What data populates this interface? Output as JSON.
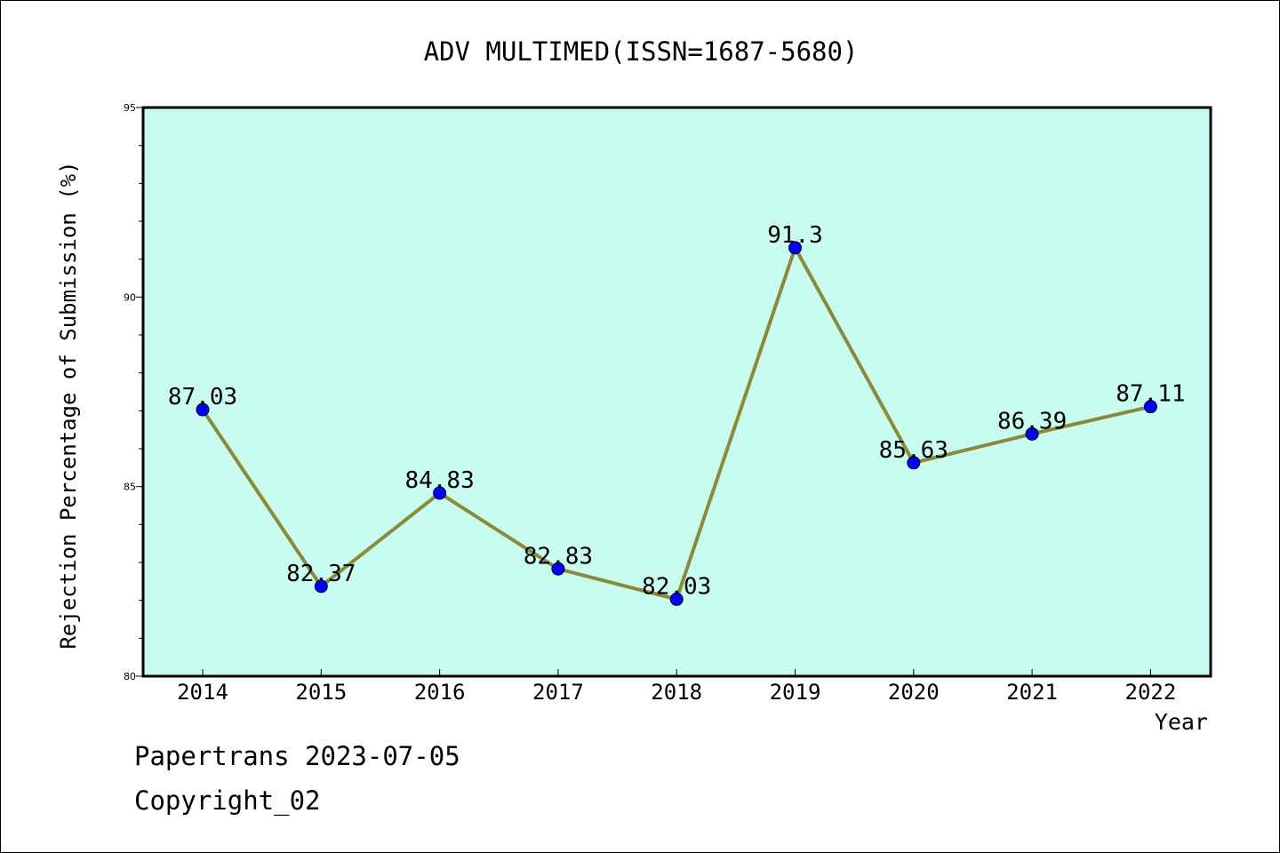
{
  "chart_data": {
    "type": "line",
    "title": "ADV MULTIMED(ISSN=1687-5680)",
    "xlabel": "Year",
    "ylabel": "Rejection Percentage of Submission (%)",
    "categories": [
      "2014",
      "2015",
      "2016",
      "2017",
      "2018",
      "2019",
      "2020",
      "2021",
      "2022"
    ],
    "series": [
      {
        "values": [
          87.03,
          82.37,
          84.83,
          82.83,
          82.03,
          91.3,
          85.63,
          86.39,
          87.11
        ],
        "labels": [
          "87.03",
          "82.37",
          "84.83",
          "82.83",
          "82.03",
          "91.3",
          "85.63",
          "86.39",
          "87.11"
        ]
      }
    ],
    "ylim": [
      80,
      95
    ],
    "yticks": [
      "80",
      "85",
      "90",
      "95"
    ],
    "grid": false,
    "colors": {
      "plot_background": "#c8fcee",
      "line": "#8b8a3a",
      "marker": "#0000ff"
    }
  },
  "footer": {
    "line1": "Papertrans 2023-07-05",
    "line2": "Copyright_02"
  }
}
